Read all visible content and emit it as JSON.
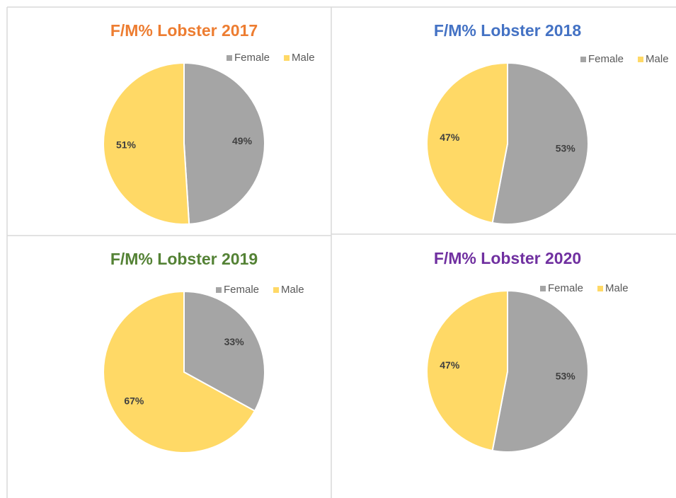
{
  "chart_data": [
    {
      "type": "pie",
      "title": "F/M% Lobster 2017",
      "title_color": "#ed7d31",
      "categories": [
        "Female",
        "Male"
      ],
      "values": [
        49,
        51
      ],
      "value_labels": [
        "49%",
        "51%"
      ],
      "colors": [
        "#a5a5a5",
        "#ffd966"
      ]
    },
    {
      "type": "pie",
      "title": "F/M% Lobster 2018",
      "title_color": "#4472c4",
      "categories": [
        "Female",
        "Male"
      ],
      "values": [
        53,
        47
      ],
      "value_labels": [
        "53%",
        "47%"
      ],
      "colors": [
        "#a5a5a5",
        "#ffd966"
      ]
    },
    {
      "type": "pie",
      "title": "F/M% Lobster 2019",
      "title_color": "#548235",
      "categories": [
        "Female",
        "Male"
      ],
      "values": [
        33,
        67
      ],
      "value_labels": [
        "33%",
        "67%"
      ],
      "colors": [
        "#a5a5a5",
        "#ffd966"
      ]
    },
    {
      "type": "pie",
      "title": "F/M% Lobster 2020",
      "title_color": "#7030a0",
      "categories": [
        "Female",
        "Male"
      ],
      "values": [
        53,
        47
      ],
      "value_labels": [
        "53%",
        "47%"
      ],
      "colors": [
        "#a5a5a5",
        "#ffd966"
      ]
    }
  ]
}
